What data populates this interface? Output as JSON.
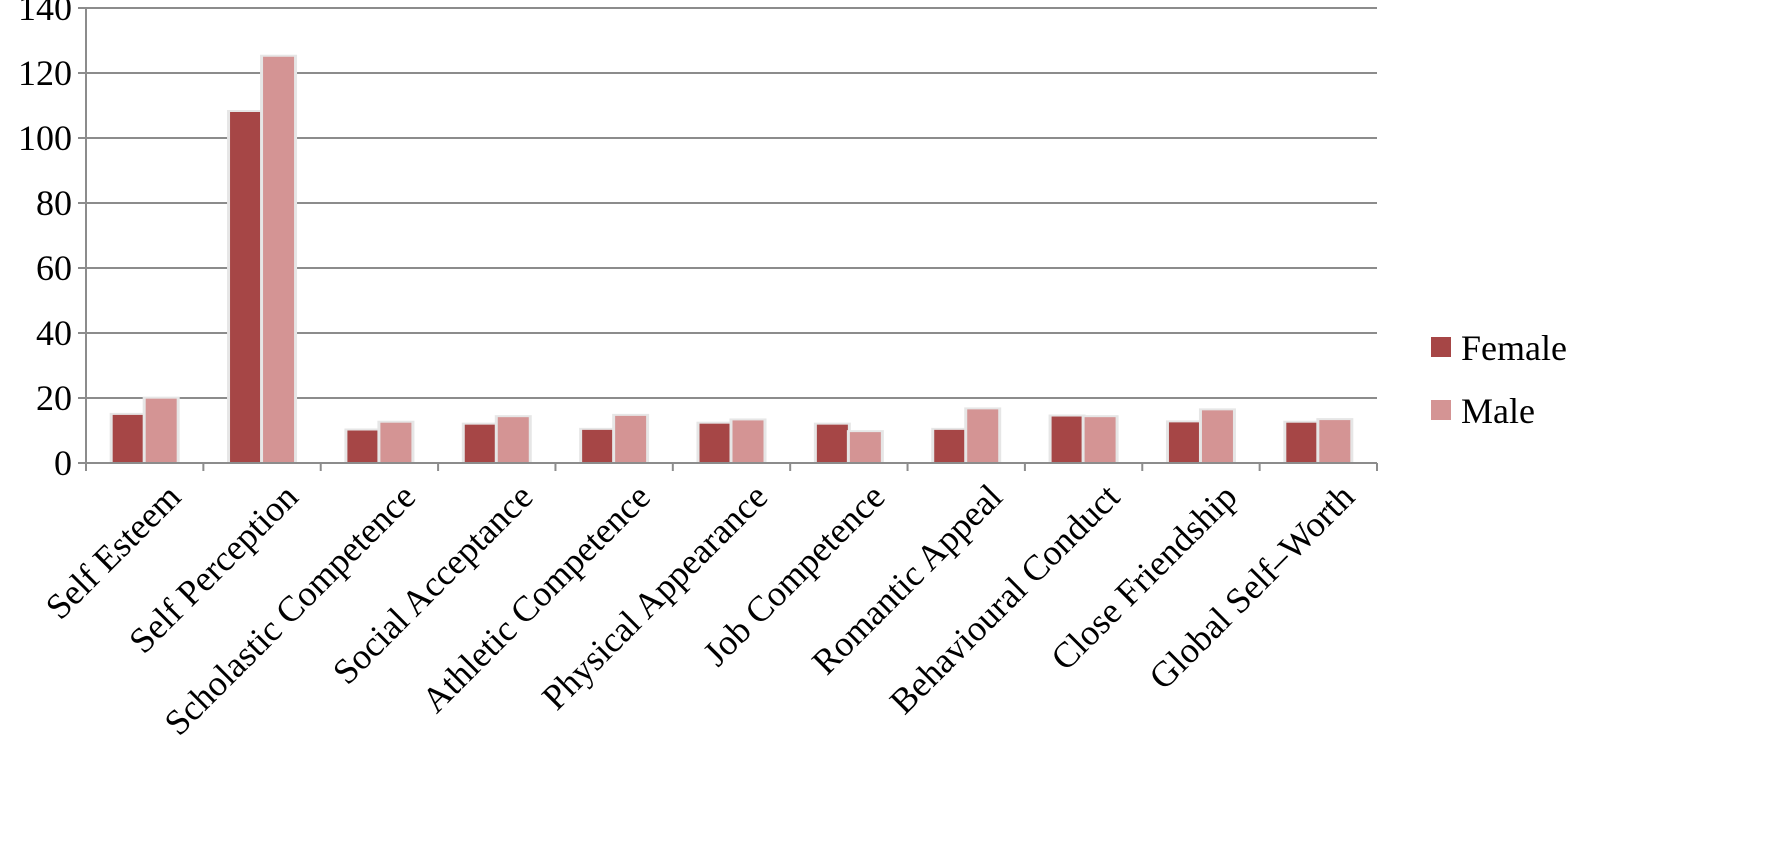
{
  "chart_data": {
    "type": "bar",
    "categories": [
      "Self Esteem",
      "Self Perception",
      "Scholastic Competence",
      "Social Acceptance",
      "Athletic Competence",
      "Physical Appearance",
      "Job Competence",
      "Romantic Appeal",
      "Behavioural Conduct",
      "Close Friendship",
      "Global Self–Worth"
    ],
    "series": [
      {
        "name": "Female",
        "color": "#a64646",
        "values": [
          14.8,
          108,
          10,
          11.8,
          10.2,
          12.1,
          11.8,
          10.2,
          14.3,
          12.5,
          12.4
        ]
      },
      {
        "name": "Male",
        "color": "#d49494",
        "values": [
          19.8,
          125,
          12.4,
          14.1,
          14.5,
          13.1,
          9.5,
          16.5,
          14.1,
          16.2,
          13.2
        ]
      }
    ],
    "title": "",
    "xlabel": "",
    "ylabel": "",
    "ylim": [
      0,
      140
    ],
    "yticks": [
      "0",
      "20",
      "40",
      "60",
      "80",
      "100",
      "120",
      "140"
    ],
    "grid": true,
    "legend_position": "right"
  }
}
